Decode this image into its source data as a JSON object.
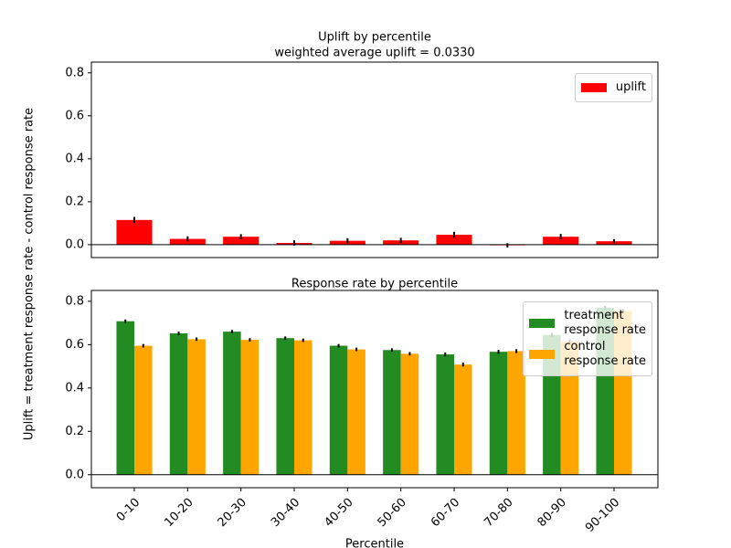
{
  "chart_data": [
    {
      "type": "bar",
      "title": "Uplift by percentile",
      "subtitle": "weighted average uplift = 0.0330",
      "ylabel": "Uplift = treatment response rate - control response rate",
      "ylim": [
        -0.06,
        0.85
      ],
      "yticks": [
        {
          "value": 0,
          "label": "0.0"
        },
        {
          "value": 0.2,
          "label": "0.2"
        },
        {
          "value": 0.4,
          "label": "0.4"
        },
        {
          "value": 0.6,
          "label": "0.6"
        },
        {
          "value": 0.8,
          "label": "0.8"
        }
      ],
      "legend": "upper right",
      "series": [
        {
          "name": "uplift",
          "color": "#ff0000",
          "values": [
            0.115,
            0.027,
            0.037,
            0.008,
            0.018,
            0.02,
            0.046,
            -0.003,
            0.037,
            0.016
          ],
          "errors": [
            0.014,
            0.012,
            0.012,
            0.012,
            0.012,
            0.012,
            0.014,
            0.01,
            0.013,
            0.01
          ]
        }
      ]
    },
    {
      "type": "bar",
      "title": "Response rate by percentile",
      "xlabel": "Percentile",
      "categories": [
        "0-10",
        "10-20",
        "20-30",
        "30-40",
        "40-50",
        "50-60",
        "60-70",
        "70-80",
        "80-90",
        "90-100"
      ],
      "ylim": [
        -0.06,
        0.85
      ],
      "yticks": [
        {
          "value": 0,
          "label": "0.0"
        },
        {
          "value": 0.2,
          "label": "0.2"
        },
        {
          "value": 0.4,
          "label": "0.4"
        },
        {
          "value": 0.6,
          "label": "0.6"
        },
        {
          "value": 0.8,
          "label": "0.8"
        }
      ],
      "legend": "upper right",
      "series": [
        {
          "name": "treatment\nresponse rate",
          "color": "#228b22",
          "values": [
            0.708,
            0.652,
            0.66,
            0.63,
            0.595,
            0.575,
            0.555,
            0.567,
            0.645,
            0.77
          ],
          "errors": [
            0.008,
            0.008,
            0.008,
            0.008,
            0.008,
            0.008,
            0.009,
            0.009,
            0.009,
            0.009
          ]
        },
        {
          "name": "control\nresponse rate",
          "color": "#ffa500",
          "values": [
            0.595,
            0.625,
            0.622,
            0.62,
            0.578,
            0.558,
            0.508,
            0.57,
            0.615,
            0.755
          ],
          "errors": [
            0.008,
            0.008,
            0.008,
            0.008,
            0.008,
            0.008,
            0.009,
            0.009,
            0.009,
            0.009
          ]
        }
      ]
    }
  ]
}
